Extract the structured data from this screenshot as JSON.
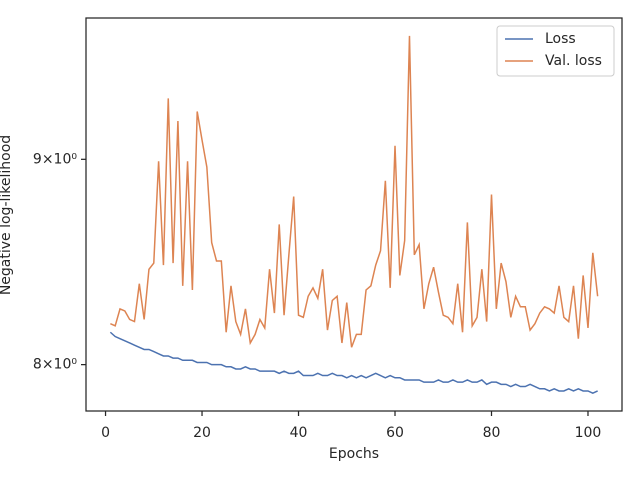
{
  "chart_data": {
    "type": "line",
    "xlabel": "Epochs",
    "ylabel": "Negative log-likelihood",
    "x": [
      1,
      2,
      3,
      4,
      5,
      6,
      7,
      8,
      9,
      10,
      11,
      12,
      13,
      14,
      15,
      16,
      17,
      18,
      19,
      20,
      21,
      22,
      23,
      24,
      25,
      26,
      27,
      28,
      29,
      30,
      31,
      32,
      33,
      34,
      35,
      36,
      37,
      38,
      39,
      40,
      41,
      42,
      43,
      44,
      45,
      46,
      47,
      48,
      49,
      50,
      51,
      52,
      53,
      54,
      55,
      56,
      57,
      58,
      59,
      60,
      61,
      62,
      63,
      64,
      65,
      66,
      67,
      68,
      69,
      70,
      71,
      72,
      73,
      74,
      75,
      76,
      77,
      78,
      79,
      80,
      81,
      82,
      83,
      84,
      85,
      86,
      87,
      88,
      89,
      90,
      91,
      92,
      93,
      94,
      95,
      96,
      97,
      98,
      99,
      100,
      101,
      102
    ],
    "series": [
      {
        "name": "Loss",
        "color": "#4c72b0",
        "values": [
          8.15,
          8.13,
          8.12,
          8.11,
          8.1,
          8.09,
          8.08,
          8.07,
          8.07,
          8.06,
          8.05,
          8.04,
          8.04,
          8.03,
          8.03,
          8.02,
          8.02,
          8.02,
          8.01,
          8.01,
          8.01,
          8.0,
          8.0,
          8.0,
          7.99,
          7.99,
          7.98,
          7.98,
          7.99,
          7.98,
          7.98,
          7.97,
          7.97,
          7.97,
          7.97,
          7.96,
          7.97,
          7.96,
          7.96,
          7.97,
          7.95,
          7.95,
          7.95,
          7.96,
          7.95,
          7.95,
          7.96,
          7.95,
          7.95,
          7.94,
          7.95,
          7.94,
          7.95,
          7.94,
          7.95,
          7.96,
          7.95,
          7.94,
          7.95,
          7.94,
          7.94,
          7.93,
          7.93,
          7.93,
          7.93,
          7.92,
          7.92,
          7.92,
          7.93,
          7.92,
          7.92,
          7.93,
          7.92,
          7.92,
          7.93,
          7.92,
          7.92,
          7.93,
          7.91,
          7.92,
          7.92,
          7.91,
          7.91,
          7.9,
          7.91,
          7.9,
          7.9,
          7.91,
          7.9,
          7.89,
          7.89,
          7.88,
          7.89,
          7.88,
          7.88,
          7.89,
          7.88,
          7.89,
          7.88,
          7.88,
          7.87,
          7.88
        ]
      },
      {
        "name": "Val. loss",
        "color": "#dd8452",
        "values": [
          8.19,
          8.18,
          8.26,
          8.25,
          8.21,
          8.2,
          8.38,
          8.21,
          8.45,
          8.48,
          8.99,
          8.47,
          9.32,
          8.48,
          9.2,
          8.37,
          8.99,
          8.35,
          9.25,
          9.1,
          8.96,
          8.58,
          8.49,
          8.49,
          8.15,
          8.37,
          8.2,
          8.14,
          8.26,
          8.1,
          8.14,
          8.21,
          8.17,
          8.45,
          8.24,
          8.67,
          8.23,
          8.52,
          8.81,
          8.23,
          8.22,
          8.32,
          8.36,
          8.31,
          8.45,
          8.16,
          8.3,
          8.32,
          8.1,
          8.29,
          8.08,
          8.14,
          8.14,
          8.35,
          8.37,
          8.47,
          8.54,
          8.89,
          8.36,
          9.07,
          8.42,
          8.59,
          9.66,
          8.52,
          8.57,
          8.26,
          8.38,
          8.46,
          8.34,
          8.23,
          8.22,
          8.19,
          8.38,
          8.15,
          8.68,
          8.18,
          8.22,
          8.45,
          8.2,
          8.82,
          8.26,
          8.48,
          8.39,
          8.22,
          8.32,
          8.27,
          8.27,
          8.16,
          8.19,
          8.24,
          8.27,
          8.26,
          8.24,
          8.37,
          8.22,
          8.2,
          8.37,
          8.12,
          8.42,
          8.17,
          8.53,
          8.32
        ]
      }
    ],
    "xlim": [
      -4.05,
      107.05
    ],
    "xticks": [
      0,
      20,
      40,
      60,
      80,
      100
    ],
    "ylim": [
      7.79,
      9.76
    ],
    "yscale": "log",
    "yticks": [
      {
        "value": 8,
        "label": "8×10⁰"
      },
      {
        "value": 9,
        "label": "9×10⁰"
      }
    ],
    "legend": "upper right"
  }
}
